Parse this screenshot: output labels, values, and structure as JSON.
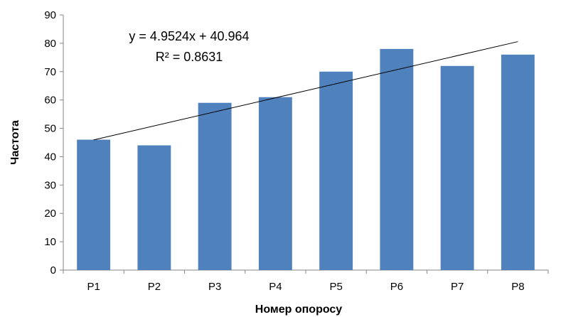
{
  "chart_data": {
    "type": "bar",
    "title": "",
    "xlabel": "Номер опоросу",
    "ylabel": "Частота",
    "categories": [
      "P1",
      "P2",
      "P3",
      "P4",
      "P5",
      "P6",
      "P7",
      "P8"
    ],
    "values": [
      46,
      44,
      59,
      61,
      70,
      78,
      72,
      76
    ],
    "ylim": [
      0,
      90
    ],
    "yticks": [
      "0",
      "10",
      "20",
      "30",
      "40",
      "50",
      "60",
      "70",
      "80",
      "90"
    ],
    "grid": false,
    "legend": "none",
    "bar_color": "#4f81bd",
    "trendline": {
      "type": "linear",
      "slope": 4.9524,
      "intercept": 40.964,
      "color": "#000000",
      "equation_label": "y = 4.9524x + 40.964",
      "r2_label": "R² = 0.8631"
    }
  }
}
